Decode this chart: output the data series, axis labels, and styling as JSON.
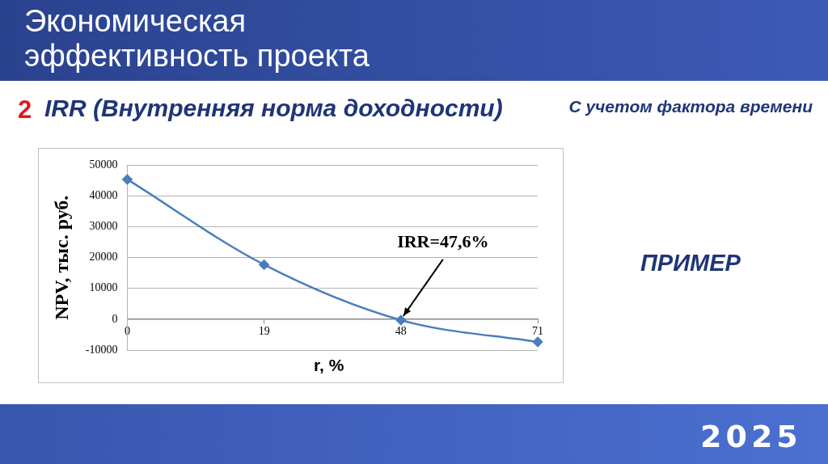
{
  "chart_data": {
    "type": "line",
    "title": "Экономическая эффективность проекта",
    "subtitle": "IRR (Внутренняя норма доходности)",
    "xlabel": "r, %",
    "ylabel": "NPV, тыс. руб.",
    "categories": [
      "0",
      "19",
      "48",
      "71"
    ],
    "values": [
      45400,
      17700,
      -300,
      -7400
    ],
    "color": "#4a7ebb",
    "ylim": [
      -10000,
      50000
    ],
    "yticks": [
      -10000,
      0,
      10000,
      20000,
      30000,
      40000,
      50000
    ],
    "grid": "y",
    "marker": "diamond",
    "line_style": "solid",
    "annotations": [
      {
        "text": "IRR=47,6%",
        "x": "48",
        "y": 0
      },
      "2",
      "С учетом фактора времени",
      "ПРИМЕР",
      "2025"
    ]
  }
}
